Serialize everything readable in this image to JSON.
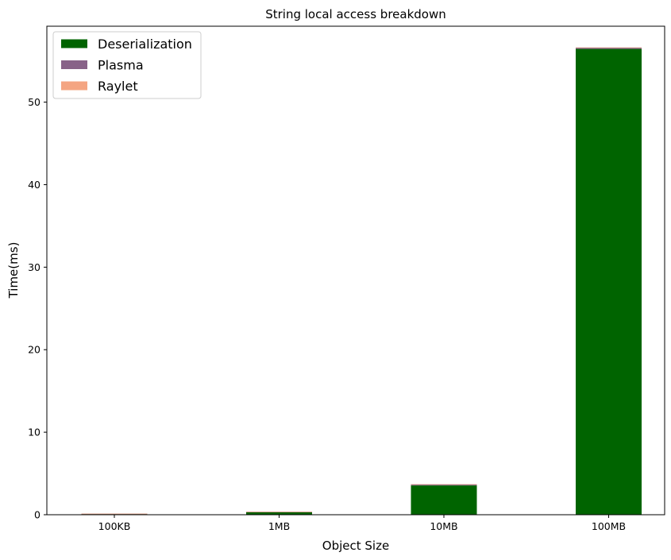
{
  "chart_data": {
    "type": "bar",
    "stacked": true,
    "title": "String local access breakdown",
    "xlabel": "Object Size",
    "ylabel": "Time(ms)",
    "categories": [
      "100KB",
      "1MB",
      "10MB",
      "100MB"
    ],
    "ylim": [
      0,
      59.2
    ],
    "yticks": [
      0,
      10,
      20,
      30,
      40,
      50
    ],
    "legend_position": "upper-left",
    "grid": false,
    "series": [
      {
        "name": "Deserialization",
        "color": "#006400",
        "values": [
          0.1,
          0.3,
          3.55,
          56.45
        ]
      },
      {
        "name": "Plasma",
        "color": "#886288",
        "values": [
          0.02,
          0.05,
          0.12,
          0.15
        ]
      },
      {
        "name": "Raylet",
        "color": "#f4a582",
        "values": [
          0.01,
          0.02,
          0.03,
          0.03
        ]
      }
    ]
  }
}
